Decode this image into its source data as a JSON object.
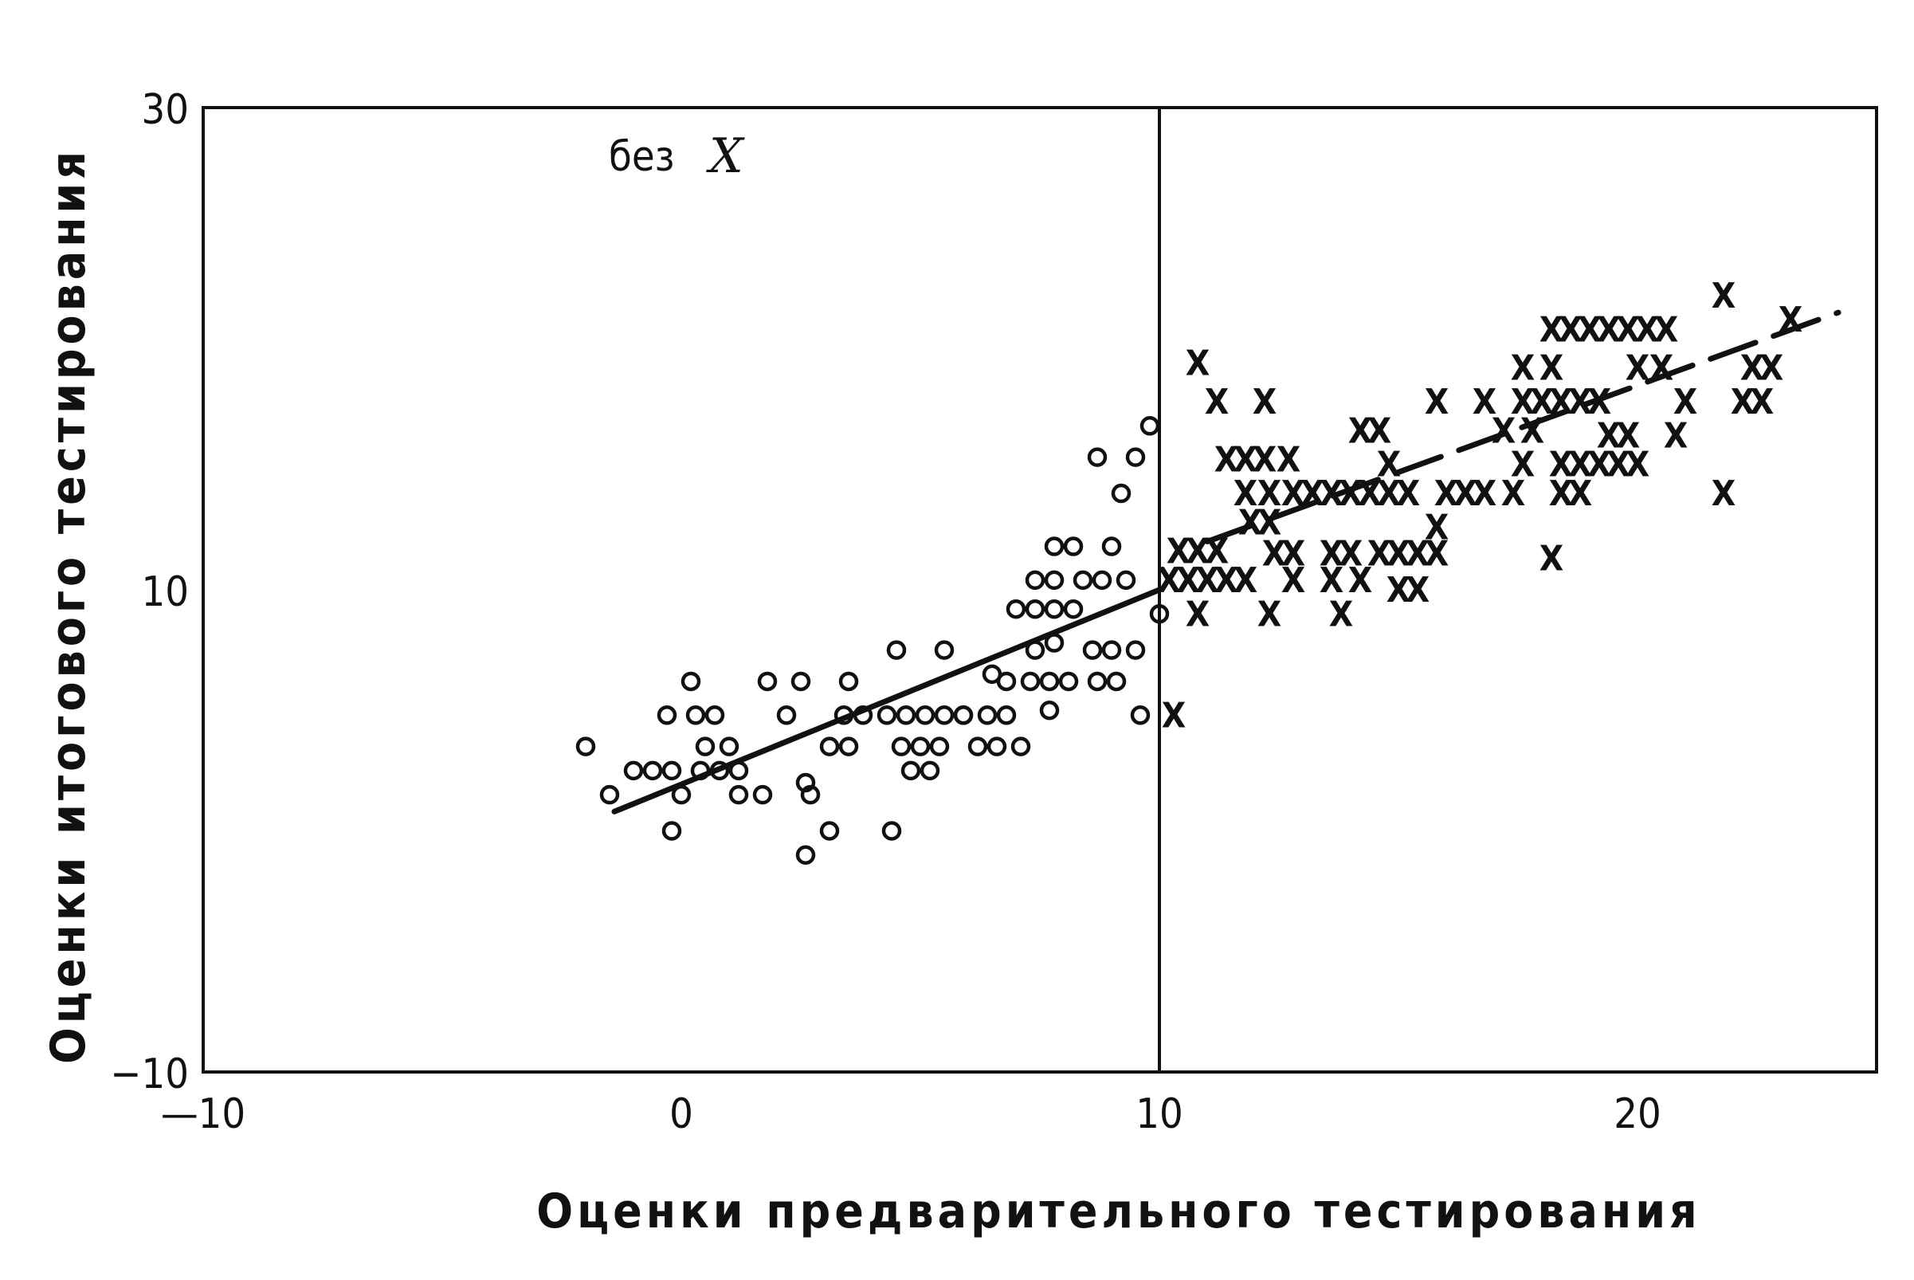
{
  "chart_data": {
    "type": "scatter",
    "title": "",
    "xlabel": "Оценки предварительного тестирования",
    "ylabel": "Оценки итогового тестирования",
    "xlim": [
      -10,
      25
    ],
    "ylim": [
      -10,
      30
    ],
    "x_ticks": [
      -10,
      0,
      10,
      20
    ],
    "y_ticks": [
      -10,
      10,
      30
    ],
    "x_tick_labels": [
      "—10",
      "0",
      "10",
      "20"
    ],
    "y_tick_labels": [
      "−10",
      "10",
      "30"
    ],
    "grid": false,
    "cutoff_x": 10,
    "annotation": {
      "text": "без",
      "symbol": "X"
    },
    "series": [
      {
        "marker": "circle",
        "points": [
          [
            -2,
            3.5
          ],
          [
            -1.5,
            1.5
          ],
          [
            -1,
            2.5
          ],
          [
            -0.6,
            2.5
          ],
          [
            -0.2,
            2.5
          ],
          [
            -0.2,
            0
          ],
          [
            0,
            1.5
          ],
          [
            -0.3,
            4.8
          ],
          [
            0.3,
            4.8
          ],
          [
            0.7,
            4.8
          ],
          [
            0.2,
            6.2
          ],
          [
            0.5,
            3.5
          ],
          [
            1,
            3.5
          ],
          [
            0.4,
            2.5
          ],
          [
            0.8,
            2.5
          ],
          [
            1.2,
            2.5
          ],
          [
            1.2,
            1.5
          ],
          [
            1.7,
            1.5
          ],
          [
            1.8,
            6.2
          ],
          [
            2.2,
            4.8
          ],
          [
            2.5,
            6.2
          ],
          [
            2.7,
            1.5
          ],
          [
            2.6,
            2
          ],
          [
            3.1,
            0
          ],
          [
            2.6,
            -1
          ],
          [
            3.1,
            3.5
          ],
          [
            3.5,
            3.5
          ],
          [
            3.4,
            4.8
          ],
          [
            3.8,
            4.8
          ],
          [
            3.5,
            6.2
          ],
          [
            4.3,
            4.8
          ],
          [
            4.6,
            3.5
          ],
          [
            5,
            3.5
          ],
          [
            5.4,
            3.5
          ],
          [
            4.8,
            2.5
          ],
          [
            5.2,
            2.5
          ],
          [
            4.7,
            4.8
          ],
          [
            5.1,
            4.8
          ],
          [
            5.5,
            4.8
          ],
          [
            5.9,
            4.8
          ],
          [
            4.5,
            7.5
          ],
          [
            5.5,
            7.5
          ],
          [
            5.9,
            4.8
          ],
          [
            6.4,
            4.8
          ],
          [
            6.8,
            4.8
          ],
          [
            6.2,
            3.5
          ],
          [
            6.6,
            3.5
          ],
          [
            7.1,
            3.5
          ],
          [
            6.8,
            6.2
          ],
          [
            4.4,
            0
          ],
          [
            6.5,
            6.5
          ],
          [
            7.0,
            9.2
          ],
          [
            7.4,
            9.2
          ],
          [
            7.8,
            9.2
          ],
          [
            8.2,
            9.2
          ],
          [
            7.4,
            7.5
          ],
          [
            7.8,
            7.8
          ],
          [
            7.3,
            6.2
          ],
          [
            7.7,
            6.2
          ],
          [
            8.1,
            6.2
          ],
          [
            7.7,
            5
          ],
          [
            7.4,
            10.4
          ],
          [
            7.8,
            10.4
          ],
          [
            8.4,
            10.4
          ],
          [
            7.8,
            11.8
          ],
          [
            8.2,
            11.8
          ],
          [
            8.6,
            7.5
          ],
          [
            9.0,
            7.5
          ],
          [
            9.5,
            7.5
          ],
          [
            8.7,
            6.2
          ],
          [
            9.1,
            6.2
          ],
          [
            8.8,
            10.4
          ],
          [
            9.3,
            10.4
          ],
          [
            9.0,
            11.8
          ],
          [
            8.7,
            15.5
          ],
          [
            9.5,
            15.5
          ],
          [
            9.2,
            14.0
          ],
          [
            9.8,
            16.8
          ],
          [
            9.6,
            4.8
          ],
          [
            10.0,
            9.0
          ]
        ]
      },
      {
        "marker": "x",
        "points": [
          [
            10.3,
            4.8
          ],
          [
            10.4,
            11.6
          ],
          [
            10.8,
            11.6
          ],
          [
            11.2,
            11.6
          ],
          [
            10.2,
            10.4
          ],
          [
            10.6,
            10.4
          ],
          [
            11.0,
            10.4
          ],
          [
            11.4,
            10.4
          ],
          [
            11.8,
            10.4
          ],
          [
            10.8,
            9.0
          ],
          [
            12.3,
            9.0
          ],
          [
            13.8,
            9.0
          ],
          [
            10.8,
            19.4
          ],
          [
            11.2,
            17.8
          ],
          [
            12.2,
            17.8
          ],
          [
            11.4,
            15.4
          ],
          [
            11.8,
            15.4
          ],
          [
            12.2,
            15.4
          ],
          [
            12.7,
            15.4
          ],
          [
            11.8,
            14.0
          ],
          [
            12.3,
            14.0
          ],
          [
            12.8,
            14.0
          ],
          [
            13.2,
            14.0
          ],
          [
            13.6,
            14.0
          ],
          [
            14.0,
            14.0
          ],
          [
            14.4,
            14.0
          ],
          [
            14.8,
            14.0
          ],
          [
            15.2,
            14.0
          ],
          [
            11.9,
            12.8
          ],
          [
            12.3,
            12.8
          ],
          [
            12.4,
            11.5
          ],
          [
            12.8,
            11.5
          ],
          [
            13.6,
            11.5
          ],
          [
            14.0,
            11.5
          ],
          [
            14.6,
            11.5
          ],
          [
            15.0,
            11.5
          ],
          [
            15.4,
            11.5
          ],
          [
            15.8,
            11.5
          ],
          [
            12.8,
            10.4
          ],
          [
            13.6,
            10.4
          ],
          [
            14.2,
            10.4
          ],
          [
            15.0,
            10.0
          ],
          [
            15.4,
            10.0
          ],
          [
            14.2,
            16.6
          ],
          [
            14.6,
            16.6
          ],
          [
            14.8,
            15.2
          ],
          [
            15.8,
            17.8
          ],
          [
            16.0,
            14.0
          ],
          [
            16.4,
            14.0
          ],
          [
            16.8,
            14.0
          ],
          [
            17.4,
            14.0
          ],
          [
            15.8,
            12.6
          ],
          [
            16.8,
            17.8
          ],
          [
            17.2,
            16.6
          ],
          [
            17.8,
            16.6
          ],
          [
            17.6,
            15.2
          ],
          [
            18.2,
            11.3
          ],
          [
            17.6,
            19.2
          ],
          [
            18.2,
            19.2
          ],
          [
            17.6,
            17.8
          ],
          [
            18.0,
            17.8
          ],
          [
            18.4,
            17.8
          ],
          [
            18.8,
            17.8
          ],
          [
            19.2,
            17.8
          ],
          [
            18.4,
            15.2
          ],
          [
            18.8,
            15.2
          ],
          [
            19.2,
            15.2
          ],
          [
            19.6,
            15.2
          ],
          [
            20.0,
            15.2
          ],
          [
            18.4,
            14.0
          ],
          [
            18.8,
            14.0
          ],
          [
            19.4,
            16.4
          ],
          [
            19.8,
            16.4
          ],
          [
            18.2,
            20.8
          ],
          [
            18.6,
            20.8
          ],
          [
            19.0,
            20.8
          ],
          [
            19.4,
            20.8
          ],
          [
            19.8,
            20.8
          ],
          [
            20.2,
            20.8
          ],
          [
            20.6,
            20.8
          ],
          [
            20.0,
            19.2
          ],
          [
            20.5,
            19.2
          ],
          [
            21.0,
            17.8
          ],
          [
            20.8,
            16.4
          ],
          [
            21.8,
            22.2
          ],
          [
            21.8,
            14.0
          ],
          [
            22.2,
            17.8
          ],
          [
            22.6,
            17.8
          ],
          [
            22.4,
            19.2
          ],
          [
            22.8,
            19.2
          ],
          [
            23.2,
            21.2
          ]
        ]
      }
    ],
    "regression_lines": [
      {
        "style": "solid",
        "from": [
          -1.4,
          0.8
        ],
        "to": [
          10.0,
          10.0
        ]
      },
      {
        "style": "dashed",
        "from": [
          11.0,
          12.0
        ],
        "to": [
          24.2,
          21.5
        ]
      }
    ]
  }
}
